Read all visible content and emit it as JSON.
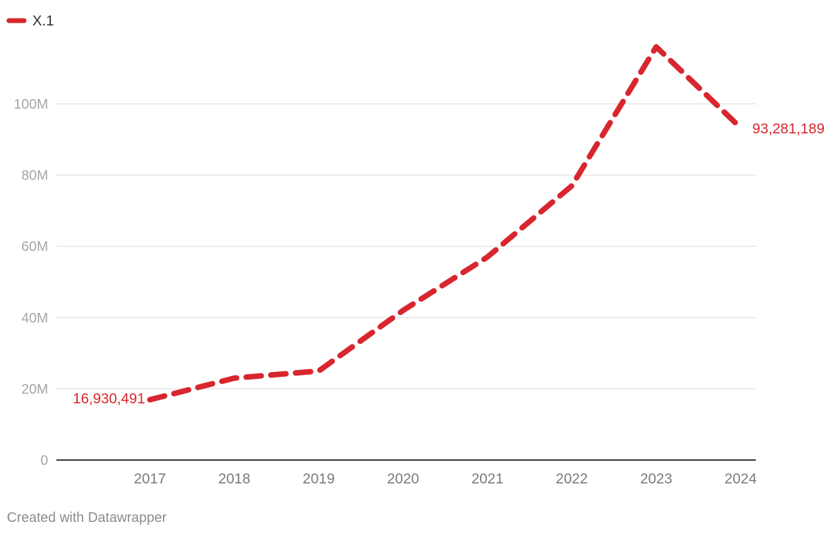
{
  "chart_data": {
    "type": "line",
    "x": [
      "2017",
      "2018",
      "2019",
      "2020",
      "2021",
      "2022",
      "2023",
      "2024"
    ],
    "series": [
      {
        "name": "X.1",
        "values": [
          16930491,
          23000000,
          25000000,
          42000000,
          57000000,
          77000000,
          116000000,
          93281189
        ],
        "color": "#d8262e",
        "line_style": "dashed"
      }
    ],
    "ylim": [
      0,
      116000000
    ],
    "yticks": [
      {
        "value": 0,
        "label": "0"
      },
      {
        "value": 20000000,
        "label": "20M"
      },
      {
        "value": 40000000,
        "label": "40M"
      },
      {
        "value": 60000000,
        "label": "60M"
      },
      {
        "value": 80000000,
        "label": "80M"
      },
      {
        "value": 100000000,
        "label": "100M"
      }
    ],
    "grid": true,
    "legend_placement": "top-left",
    "annotations": {
      "first_label": "16,930,491",
      "last_label": "93,281,189"
    }
  },
  "credit": "Created with Datawrapper",
  "colors": {
    "series": "#d8262e",
    "grid": "#e5e5e5",
    "axis": "#333333"
  }
}
